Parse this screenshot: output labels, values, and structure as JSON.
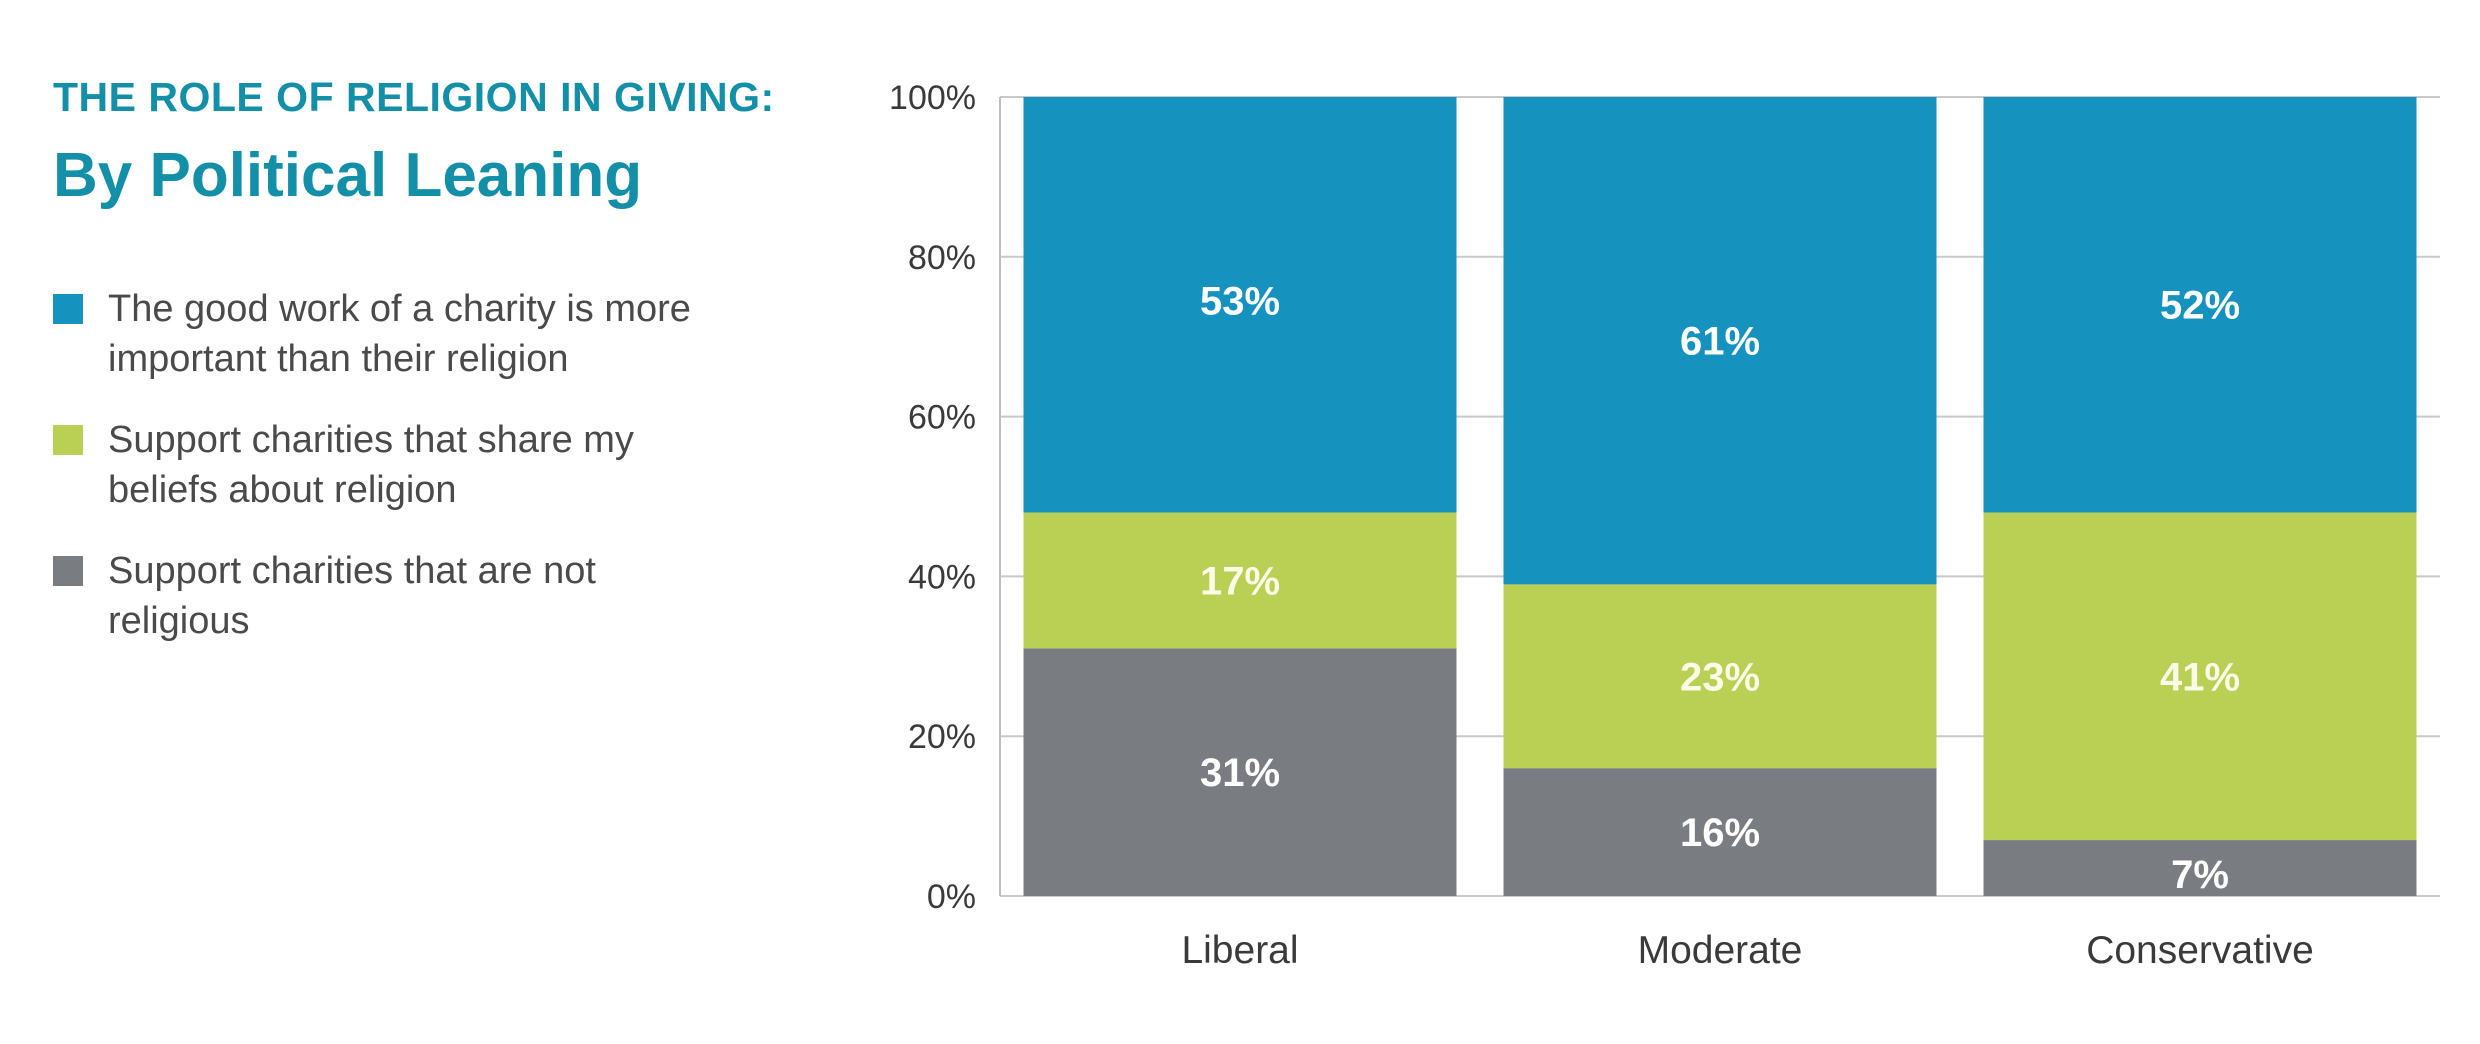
{
  "header": {
    "kicker": "THE ROLE OF RELIGION IN GIVING:",
    "title": "By Political Leaning"
  },
  "legend": [
    {
      "label": "The good work of a charity is more important than their religion",
      "color": "#1692bf"
    },
    {
      "label": "Support charities that share my beliefs about religion",
      "color": "#b9d054"
    },
    {
      "label": "Support charities that are not religious",
      "color": "#797d82"
    }
  ],
  "chart_data": {
    "type": "bar",
    "stacked": true,
    "categories": [
      "Liberal",
      "Moderate",
      "Conservative"
    ],
    "series": [
      {
        "name": "Support charities that are not religious",
        "values": [
          31,
          16,
          7
        ],
        "labels": [
          "31%",
          "16%",
          "7%"
        ],
        "color": "#797d82",
        "label_color": "#ffffff"
      },
      {
        "name": "Support charities that share my beliefs about religion",
        "values": [
          17,
          23,
          41
        ],
        "labels": [
          "17%",
          "23%",
          "41%"
        ],
        "color": "#b9d054",
        "label_color": "#fbfbe8"
      },
      {
        "name": "The good work of a charity is more important than their religion",
        "values": [
          53,
          61,
          52
        ],
        "labels": [
          "53%",
          "61%",
          "52%"
        ],
        "color": "#1692bf",
        "label_color": "#ffffff"
      }
    ],
    "ylim": [
      0,
      100
    ],
    "yticks": [
      0,
      20,
      40,
      60,
      80,
      100
    ],
    "ytick_labels": [
      "0%",
      "20%",
      "40%",
      "60%",
      "80%",
      "100%"
    ],
    "grid": true,
    "legend_position": "left",
    "xlabel": "",
    "ylabel": ""
  }
}
